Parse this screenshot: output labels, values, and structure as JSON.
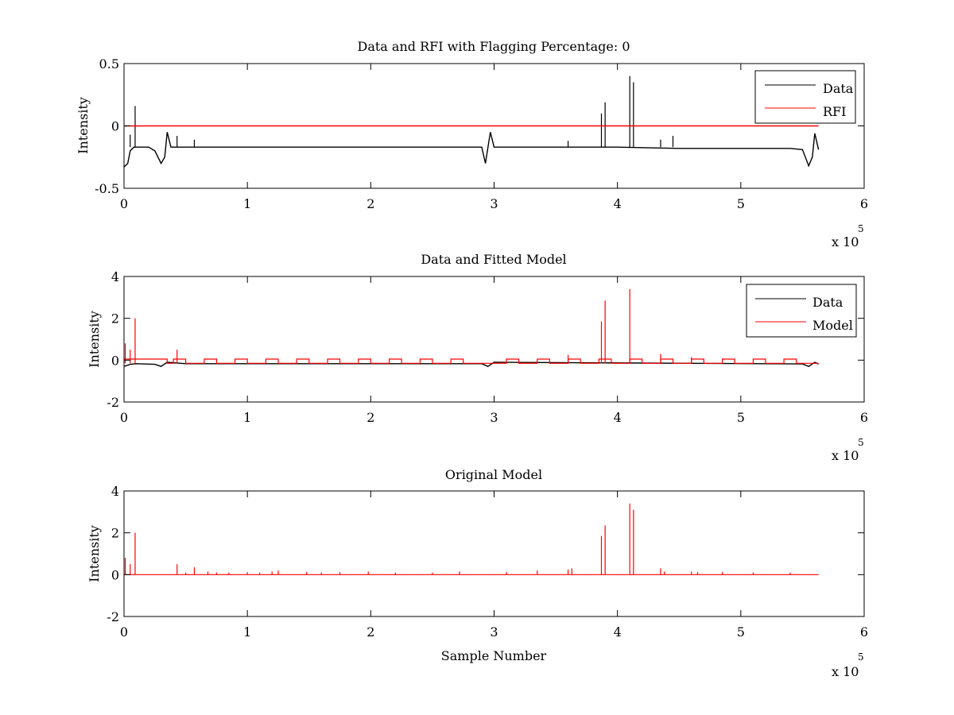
{
  "chart_data": [
    {
      "type": "line",
      "title": "Data and RFI with Flagging Percentage: 0",
      "xlabel": "",
      "ylabel": "Intensity",
      "xlim": [
        0,
        6
      ],
      "ylim": [
        -0.5,
        0.5
      ],
      "x_ticks": [
        "0",
        "1",
        "2",
        "3",
        "4",
        "5",
        "6"
      ],
      "y_ticks": [
        "-0.5",
        "0",
        "0.5"
      ],
      "x_multiplier_base": "x 10",
      "x_multiplier_exp": "5",
      "legend": {
        "position": "top-right",
        "entries": [
          "Data",
          "RFI"
        ]
      },
      "series": [
        {
          "name": "Data",
          "color": "#000000",
          "x": [
            0,
            0.03,
            0.05,
            0.08,
            0.1,
            0.2,
            0.25,
            0.3,
            0.33,
            0.35,
            0.38,
            0.5,
            1.0,
            1.5,
            2.0,
            2.5,
            2.9,
            2.93,
            2.97,
            3.0,
            3.2,
            3.5,
            4.0,
            4.5,
            5.0,
            5.4,
            5.5,
            5.55,
            5.58,
            5.6,
            5.63
          ],
          "y": [
            -0.33,
            -0.3,
            -0.2,
            -0.17,
            -0.17,
            -0.17,
            -0.2,
            -0.3,
            -0.25,
            -0.05,
            -0.17,
            -0.17,
            -0.17,
            -0.17,
            -0.17,
            -0.17,
            -0.17,
            -0.3,
            -0.05,
            -0.17,
            -0.17,
            -0.17,
            -0.17,
            -0.18,
            -0.18,
            -0.18,
            -0.19,
            -0.32,
            -0.25,
            -0.06,
            -0.19
          ],
          "spikes": [
            [
              0.05,
              -0.07
            ],
            [
              0.09,
              0.16
            ],
            [
              0.43,
              -0.08
            ],
            [
              0.57,
              -0.11
            ],
            [
              3.6,
              -0.12
            ],
            [
              3.87,
              0.1
            ],
            [
              3.9,
              0.19
            ],
            [
              4.1,
              0.4
            ],
            [
              4.13,
              0.35
            ],
            [
              4.35,
              -0.11
            ],
            [
              4.45,
              -0.08
            ]
          ]
        },
        {
          "name": "RFI",
          "color": "#ff0000",
          "x": [
            0,
            5.63
          ],
          "y": [
            0,
            0
          ]
        }
      ]
    },
    {
      "type": "line",
      "title": "Data and Fitted Model",
      "xlabel": "",
      "ylabel": "Intensity",
      "xlim": [
        0,
        6
      ],
      "ylim": [
        -2,
        4
      ],
      "x_ticks": [
        "0",
        "1",
        "2",
        "3",
        "4",
        "5",
        "6"
      ],
      "y_ticks": [
        "-2",
        "0",
        "2",
        "4"
      ],
      "x_multiplier_base": "x 10",
      "x_multiplier_exp": "5",
      "legend": {
        "position": "top-right",
        "entries": [
          "Data",
          "Model"
        ]
      },
      "series": [
        {
          "name": "Data",
          "color": "#000000",
          "x": [
            0,
            0.05,
            0.1,
            0.25,
            0.3,
            0.35,
            0.5,
            2.9,
            2.95,
            3.0,
            5.5,
            5.55,
            5.6,
            5.63
          ],
          "y": [
            -0.3,
            -0.2,
            -0.17,
            -0.2,
            -0.3,
            -0.1,
            -0.17,
            -0.17,
            -0.3,
            -0.1,
            -0.18,
            -0.3,
            -0.1,
            -0.19
          ]
        },
        {
          "name": "Model",
          "color": "#ff0000",
          "baseline": -0.15,
          "offset_level": 0.05,
          "offset_steps": [
            [
              0.0,
              0.35
            ],
            [
              0.4,
              0.5
            ],
            [
              0.65,
              0.75
            ],
            [
              0.9,
              1.0
            ],
            [
              1.15,
              1.25
            ],
            [
              1.4,
              1.5
            ],
            [
              1.65,
              1.75
            ],
            [
              1.9,
              2.0
            ],
            [
              2.15,
              2.25
            ],
            [
              2.4,
              2.5
            ],
            [
              2.65,
              2.75
            ],
            [
              3.1,
              3.2
            ],
            [
              3.35,
              3.45
            ],
            [
              3.6,
              3.7
            ],
            [
              3.85,
              3.95
            ],
            [
              4.1,
              4.2
            ],
            [
              4.35,
              4.45
            ],
            [
              4.6,
              4.7
            ],
            [
              4.85,
              4.95
            ],
            [
              5.1,
              5.2
            ],
            [
              5.35,
              5.45
            ]
          ],
          "spikes": [
            [
              0.01,
              0.8
            ],
            [
              0.05,
              0.5
            ],
            [
              0.09,
              2.0
            ],
            [
              0.43,
              0.5
            ],
            [
              3.6,
              0.25
            ],
            [
              3.87,
              1.85
            ],
            [
              3.9,
              2.85
            ],
            [
              4.1,
              3.4
            ],
            [
              4.35,
              0.3
            ],
            [
              4.6,
              0.15
            ]
          ]
        }
      ]
    },
    {
      "type": "line",
      "title": "Original Model",
      "xlabel": "Sample Number",
      "ylabel": "Intensity",
      "xlim": [
        0,
        6
      ],
      "ylim": [
        -2,
        4
      ],
      "x_ticks": [
        "0",
        "1",
        "2",
        "3",
        "4",
        "5",
        "6"
      ],
      "y_ticks": [
        "-2",
        "0",
        "2",
        "4"
      ],
      "x_multiplier_base": "x 10",
      "x_multiplier_exp": "5",
      "series": [
        {
          "name": "",
          "color": "#ff0000",
          "baseline": 0,
          "spikes": [
            [
              0.01,
              0.8
            ],
            [
              0.05,
              0.5
            ],
            [
              0.09,
              2.0
            ],
            [
              0.43,
              0.5
            ],
            [
              0.5,
              0.1
            ],
            [
              0.57,
              0.35
            ],
            [
              0.68,
              0.15
            ],
            [
              0.75,
              0.1
            ],
            [
              0.85,
              0.1
            ],
            [
              1.0,
              0.12
            ],
            [
              1.1,
              0.1
            ],
            [
              1.2,
              0.15
            ],
            [
              1.25,
              0.2
            ],
            [
              1.48,
              0.12
            ],
            [
              1.6,
              0.1
            ],
            [
              1.75,
              0.12
            ],
            [
              1.98,
              0.15
            ],
            [
              2.2,
              0.1
            ],
            [
              2.5,
              0.1
            ],
            [
              2.72,
              0.15
            ],
            [
              3.1,
              0.12
            ],
            [
              3.35,
              0.2
            ],
            [
              3.6,
              0.25
            ],
            [
              3.63,
              0.3
            ],
            [
              3.87,
              1.85
            ],
            [
              3.9,
              2.35
            ],
            [
              4.1,
              3.4
            ],
            [
              4.13,
              3.1
            ],
            [
              4.35,
              0.3
            ],
            [
              4.38,
              0.15
            ],
            [
              4.6,
              0.15
            ],
            [
              4.65,
              0.12
            ],
            [
              4.85,
              0.12
            ],
            [
              5.1,
              0.1
            ],
            [
              5.4,
              0.1
            ]
          ]
        }
      ]
    }
  ]
}
